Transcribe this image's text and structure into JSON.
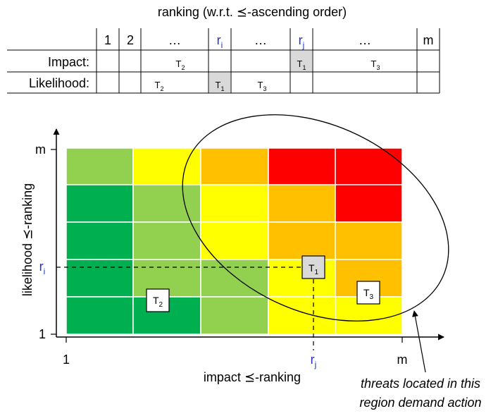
{
  "header_title": "ranking (w.r.t. ⪯-ascending order)",
  "rank_table": {
    "columns": [
      "1",
      "2",
      "…",
      "r",
      "…",
      "r",
      "…",
      "m"
    ],
    "column_subscripts": [
      "",
      "",
      "",
      "i",
      "",
      "j",
      "",
      ""
    ],
    "rows": [
      {
        "label": "Impact:",
        "entries": [
          {
            "letter": "T",
            "sub": "2",
            "highlighted": false
          },
          {
            "letter": "T",
            "sub": "1",
            "highlighted": true
          },
          {
            "letter": "T",
            "sub": "3",
            "highlighted": false
          }
        ]
      },
      {
        "label": "Likelihood:",
        "entries": [
          {
            "letter": "T",
            "sub": "2",
            "highlighted": false
          },
          {
            "letter": "T",
            "sub": "1",
            "highlighted": true
          },
          {
            "letter": "T",
            "sub": "3",
            "highlighted": false
          }
        ]
      }
    ]
  },
  "matrix": {
    "x_axis_label": "impact ⪯-ranking",
    "y_axis_label": "likelihood ⪯-ranking",
    "x_tick_min": "1",
    "x_tick_max": "m",
    "y_tick_min": "1",
    "y_tick_max": "m",
    "marker_x": {
      "letter": "r",
      "sub": "j"
    },
    "marker_y": {
      "letter": "r",
      "sub": "i"
    },
    "colors": {
      "dark_green": "#00b050",
      "light_green": "#92d050",
      "yellow": "#ffff00",
      "orange": "#ffc000",
      "red": "#ff0000"
    },
    "cells_top_to_bottom": [
      [
        "light_green",
        "yellow",
        "orange",
        "red",
        "red"
      ],
      [
        "dark_green",
        "light_green",
        "yellow",
        "orange",
        "red"
      ],
      [
        "dark_green",
        "light_green",
        "yellow",
        "orange",
        "orange"
      ],
      [
        "dark_green",
        "light_green",
        "light_green",
        "yellow",
        "orange"
      ],
      [
        "dark_green",
        "dark_green",
        "light_green",
        "yellow",
        "yellow"
      ]
    ],
    "threats": [
      {
        "letter": "T",
        "sub": "1",
        "highlighted": true
      },
      {
        "letter": "T",
        "sub": "2",
        "highlighted": false
      },
      {
        "letter": "T",
        "sub": "3",
        "highlighted": false
      }
    ]
  },
  "annotation": {
    "line1": "threats located in this",
    "line2": "region demand action"
  }
}
